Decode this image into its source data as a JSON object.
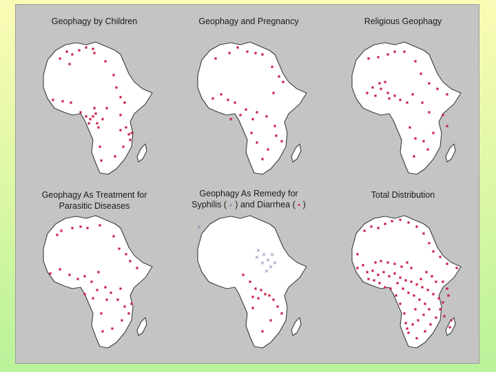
{
  "figure": {
    "panels": [
      {
        "id": "children",
        "title_lines": [
          "Geophagy by Children"
        ]
      },
      {
        "id": "pregnancy",
        "title_lines": [
          "Geophagy and Pregnancy"
        ]
      },
      {
        "id": "religious",
        "title_lines": [
          "Religious Geophagy"
        ]
      },
      {
        "id": "parasitic",
        "title_lines": [
          "Geophagy As Treatment for",
          "Parasitic Diseases"
        ]
      },
      {
        "id": "remedy",
        "title_lines": [
          "Geophagy As Remedy for",
          "Syphilis (",
          ") and Diarrhea (",
          ")"
        ]
      },
      {
        "id": "total",
        "title_lines": [
          "Total Distribution"
        ]
      }
    ],
    "legend": {
      "syphilis_symbol": "×",
      "diarrhea_symbol": "•"
    },
    "colors": {
      "dot": "#c81f45",
      "syphilis_mark": "#6f73a8",
      "land": "#ffffff",
      "outline": "#3a3a3a",
      "panel_bg": "#c4c4c4"
    }
  }
}
